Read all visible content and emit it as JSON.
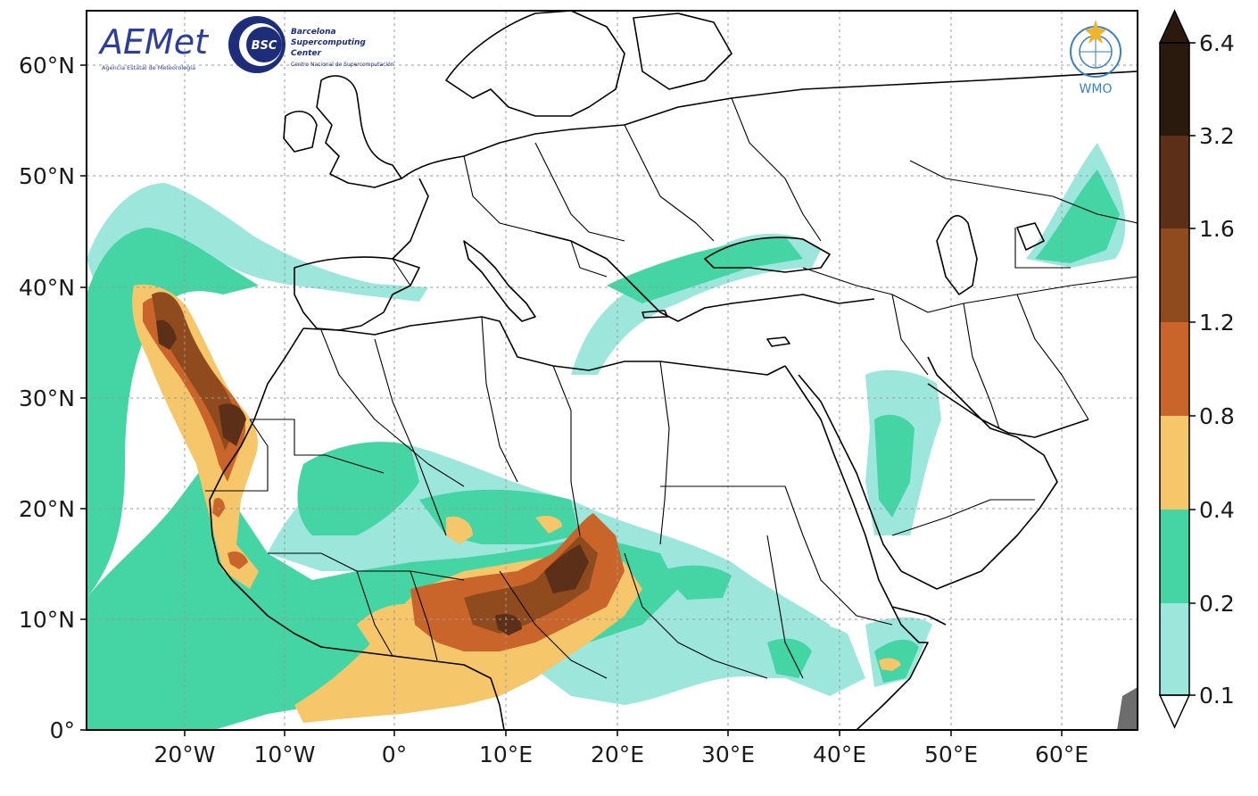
{
  "map": {
    "lat_ticks": [
      "60°N",
      "50°N",
      "40°N",
      "30°N",
      "20°N",
      "10°N",
      "0°"
    ],
    "lon_ticks": [
      "20°W",
      "10°W",
      "0°",
      "10°E",
      "20°E",
      "30°E",
      "40°E",
      "50°E",
      "60°E"
    ],
    "lat_range": [
      0,
      65
    ],
    "lon_range": [
      -28,
      67
    ]
  },
  "colorbar": {
    "levels": [
      "6.4",
      "3.2",
      "1.6",
      "1.2",
      "0.8",
      "0.4",
      "0.2",
      "0.1"
    ],
    "colors": [
      "#2a1a0e",
      "#5c3018",
      "#8f4b1d",
      "#c9642a",
      "#f5c66a",
      "#45d4a4",
      "#9ce6dc"
    ]
  },
  "logos": {
    "aemet_text": "AEMet",
    "aemet_sub": "Agencia Estatal de Meteorología",
    "bsc_badge": "BSC",
    "bsc_line1": "Barcelona",
    "bsc_line2": "Supercomputing",
    "bsc_line3": "Center",
    "bsc_sub": "Centro Nacional de Supercomputación",
    "wmo_text": "WMO"
  }
}
